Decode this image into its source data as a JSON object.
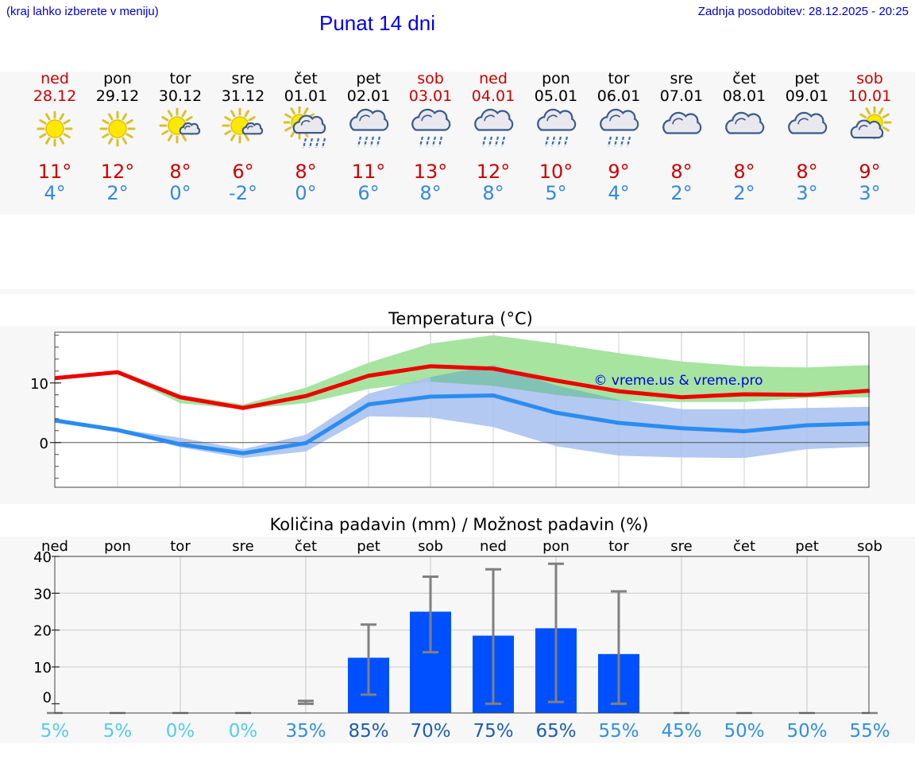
{
  "header": {
    "location_hint": "(kraj lahko izberete v meniju)",
    "title": "Punat 14 dni",
    "last_update": "Zadnja posodobitev: 28.12.2025 - 20:25"
  },
  "days": [
    {
      "name": "ned",
      "date": "28.12",
      "weekend": true,
      "icon": "sun-icon",
      "max": "11°",
      "min": "4°"
    },
    {
      "name": "pon",
      "date": "29.12",
      "weekend": false,
      "icon": "sun-icon",
      "max": "12°",
      "min": "2°"
    },
    {
      "name": "tor",
      "date": "30.12",
      "weekend": false,
      "icon": "sun-small-cloud-icon",
      "max": "8°",
      "min": "0°"
    },
    {
      "name": "sre",
      "date": "31.12",
      "weekend": false,
      "icon": "sun-small-cloud-icon",
      "max": "6°",
      "min": "-2°"
    },
    {
      "name": "čet",
      "date": "01.01",
      "weekend": false,
      "icon": "sun-cloud-rain-icon",
      "max": "8°",
      "min": "0°"
    },
    {
      "name": "pet",
      "date": "02.01",
      "weekend": false,
      "icon": "cloud-rain-icon",
      "max": "11°",
      "min": "6°"
    },
    {
      "name": "sob",
      "date": "03.01",
      "weekend": true,
      "icon": "cloud-rain-icon",
      "max": "13°",
      "min": "8°"
    },
    {
      "name": "ned",
      "date": "04.01",
      "weekend": true,
      "icon": "cloud-rain-icon",
      "max": "12°",
      "min": "8°"
    },
    {
      "name": "pon",
      "date": "05.01",
      "weekend": false,
      "icon": "cloud-rain-icon",
      "max": "10°",
      "min": "5°"
    },
    {
      "name": "tor",
      "date": "06.01",
      "weekend": false,
      "icon": "cloud-rain-icon",
      "max": "9°",
      "min": "4°"
    },
    {
      "name": "sre",
      "date": "07.01",
      "weekend": false,
      "icon": "cloud-icon",
      "max": "8°",
      "min": "2°"
    },
    {
      "name": "čet",
      "date": "08.01",
      "weekend": false,
      "icon": "cloud-icon",
      "max": "8°",
      "min": "2°"
    },
    {
      "name": "pet",
      "date": "09.01",
      "weekend": false,
      "icon": "cloud-icon",
      "max": "8°",
      "min": "3°"
    },
    {
      "name": "sob",
      "date": "10.01",
      "weekend": true,
      "icon": "sun-behind-cloud-icon",
      "max": "9°",
      "min": "3°"
    }
  ],
  "colors": {
    "max_line": "#ee0000",
    "min_line": "#2a8cf0",
    "max_band": "#a6e4a0",
    "min_band": "#a6bff0",
    "overlap_band": "#74c0a0",
    "bar": "#0050ff",
    "whisker": "#808080"
  },
  "chart_data": [
    {
      "type": "line",
      "title": "Temperatura (°C)",
      "watermark": "© vreme.us & vreme.pro",
      "categories": [
        "28.12",
        "29.12",
        "30.12",
        "31.12",
        "01.01",
        "02.01",
        "03.01",
        "04.01",
        "05.01",
        "06.01",
        "07.01",
        "08.01",
        "09.01",
        "10.01"
      ],
      "series": [
        {
          "name": "max",
          "values": [
            10.8,
            11.8,
            7.6,
            5.8,
            7.8,
            11.2,
            12.8,
            12.4,
            10.4,
            8.6,
            7.6,
            8.1,
            8.0,
            8.7
          ],
          "band_low": [
            10.6,
            11.6,
            6.6,
            5.6,
            6.6,
            9.0,
            10.2,
            9.5,
            8.0,
            7.0,
            6.8,
            6.8,
            7.5,
            7.6
          ],
          "band_high": [
            10.9,
            12.0,
            8.0,
            6.4,
            9.2,
            13.4,
            16.6,
            18.0,
            16.6,
            15.0,
            13.6,
            12.8,
            12.6,
            13.0
          ]
        },
        {
          "name": "min",
          "values": [
            3.7,
            2.1,
            -0.3,
            -1.8,
            -0.1,
            6.4,
            7.7,
            7.9,
            5.0,
            3.3,
            2.4,
            1.9,
            2.9,
            3.2
          ],
          "band_low": [
            3.4,
            1.9,
            -0.8,
            -2.6,
            -1.5,
            4.4,
            4.2,
            2.6,
            -0.6,
            -2.2,
            -2.5,
            -2.6,
            -1.1,
            -0.7
          ],
          "band_high": [
            4.1,
            2.3,
            0.8,
            -1.1,
            1.3,
            8.2,
            11.0,
            13.0,
            9.6,
            7.2,
            5.6,
            5.6,
            5.8,
            6.0
          ]
        }
      ],
      "ylim": [
        -7.5,
        18.5
      ],
      "yticks": [
        0,
        10
      ]
    },
    {
      "type": "bar",
      "title": "Količina padavin (mm) / Možnost padavin (%)",
      "categories": [
        "ned",
        "pon",
        "tor",
        "sre",
        "čet",
        "pet",
        "sob",
        "ned",
        "pon",
        "tor",
        "sre",
        "čet",
        "pet",
        "sob"
      ],
      "values": [
        0,
        0,
        0,
        0,
        0,
        12.5,
        25,
        18.5,
        20.5,
        13.5,
        0,
        0,
        0,
        0
      ],
      "err_low": [
        0,
        0,
        0,
        0,
        0,
        2.5,
        14,
        0,
        0.5,
        0,
        0,
        0,
        0,
        0
      ],
      "err_high": [
        0,
        0,
        0,
        0,
        0.8,
        21.5,
        34.5,
        36.5,
        38,
        30.5,
        0,
        0,
        0,
        0
      ],
      "probability": [
        "5%",
        "5%",
        "0%",
        "0%",
        "35%",
        "85%",
        "70%",
        "75%",
        "65%",
        "55%",
        "45%",
        "50%",
        "50%",
        "55%"
      ],
      "probability_values": [
        5,
        5,
        0,
        0,
        35,
        85,
        70,
        75,
        65,
        55,
        45,
        50,
        50,
        55
      ],
      "ylim": [
        -2.5,
        40
      ],
      "yticks": [
        0,
        10,
        20,
        30,
        40
      ]
    }
  ]
}
